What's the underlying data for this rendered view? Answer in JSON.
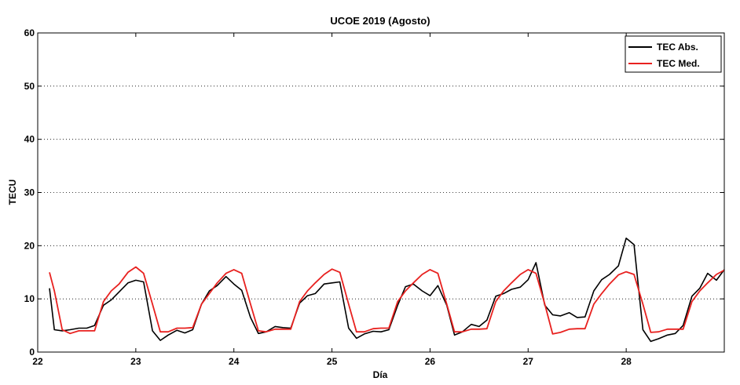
{
  "chart_data": {
    "type": "line",
    "title": "UCOE 2019 (Agosto)",
    "xlabel": "Día",
    "ylabel": "TECU",
    "xlim": [
      22,
      29
    ],
    "ylim": [
      0,
      60
    ],
    "xticks": [
      22,
      23,
      24,
      25,
      26,
      27,
      28
    ],
    "yticks": [
      0,
      10,
      20,
      30,
      40,
      50,
      60
    ],
    "grid": "y-dotted",
    "legend_position": "top-right",
    "series": [
      {
        "name": "TEC Abs.",
        "color": "#000000",
        "x": [
          22.12,
          22.17,
          22.25,
          22.33,
          22.42,
          22.5,
          22.58,
          22.67,
          22.75,
          22.83,
          22.92,
          23.0,
          23.08,
          23.17,
          23.25,
          23.33,
          23.42,
          23.5,
          23.58,
          23.67,
          23.75,
          23.83,
          23.92,
          24.0,
          24.08,
          24.17,
          24.25,
          24.33,
          24.42,
          24.5,
          24.58,
          24.67,
          24.75,
          24.83,
          24.92,
          25.0,
          25.08,
          25.17,
          25.25,
          25.33,
          25.42,
          25.5,
          25.58,
          25.67,
          25.75,
          25.83,
          25.92,
          26.0,
          26.08,
          26.17,
          26.25,
          26.33,
          26.42,
          26.5,
          26.58,
          26.67,
          26.75,
          26.83,
          26.92,
          27.0,
          27.08,
          27.17,
          27.25,
          27.33,
          27.42,
          27.5,
          27.58,
          27.67,
          27.75,
          27.83,
          27.92,
          28.0,
          28.08,
          28.17,
          28.25,
          28.33,
          28.42,
          28.5,
          28.58,
          28.67,
          28.75,
          28.83,
          28.92,
          29.0
        ],
        "y": [
          12,
          4.2,
          4.0,
          4.2,
          4.5,
          4.5,
          5,
          8.8,
          9.8,
          11.3,
          13,
          13.5,
          13.2,
          4,
          2.2,
          3.2,
          4.1,
          3.6,
          4.2,
          9.0,
          11.5,
          12.5,
          14.2,
          12.8,
          11.6,
          6.5,
          3.5,
          3.8,
          4.8,
          4.6,
          4.5,
          9.2,
          10.6,
          11.0,
          12.8,
          13.0,
          13.2,
          4.5,
          2.6,
          3.4,
          3.9,
          3.8,
          4.2,
          8.8,
          12.3,
          12.8,
          11.5,
          10.6,
          12.5,
          8.8,
          3.2,
          3.8,
          5.2,
          4.8,
          6.0,
          10.5,
          11.0,
          11.8,
          12.2,
          13.6,
          16.8,
          8.8,
          7.0,
          6.8,
          7.4,
          6.5,
          6.6,
          11.5,
          13.6,
          14.6,
          16.2,
          21.4,
          20.2,
          4.2,
          2.0,
          2.5,
          3.2,
          3.5,
          5.0,
          10.5,
          12.0,
          14.8,
          13.5,
          15.5
        ]
      },
      {
        "name": "TEC Med.",
        "color": "#e8211f",
        "x": [
          22.12,
          22.17,
          22.25,
          22.33,
          22.42,
          22.5,
          22.58,
          22.67,
          22.75,
          22.83,
          22.92,
          23.0,
          23.08,
          23.17,
          23.25,
          23.33,
          23.42,
          23.5,
          23.58,
          23.67,
          23.75,
          23.83,
          23.92,
          24.0,
          24.08,
          24.17,
          24.25,
          24.33,
          24.42,
          24.5,
          24.58,
          24.67,
          24.75,
          24.83,
          24.92,
          25.0,
          25.08,
          25.17,
          25.25,
          25.33,
          25.42,
          25.5,
          25.58,
          25.67,
          25.75,
          25.83,
          25.92,
          26.0,
          26.08,
          26.17,
          26.25,
          26.33,
          26.42,
          26.5,
          26.58,
          26.67,
          26.75,
          26.83,
          26.92,
          27.0,
          27.08,
          27.17,
          27.25,
          27.33,
          27.42,
          27.5,
          27.58,
          27.67,
          27.75,
          27.83,
          27.92,
          28.0,
          28.08,
          28.17,
          28.25,
          28.33,
          28.42,
          28.5,
          28.58,
          28.67,
          28.75,
          28.83,
          28.92,
          29.0
        ],
        "y": [
          15,
          11.5,
          4.2,
          3.5,
          4.0,
          4.0,
          4.0,
          9.5,
          11.5,
          12.8,
          15.0,
          16.0,
          14.8,
          9.0,
          3.8,
          3.8,
          4.5,
          4.5,
          4.6,
          9.0,
          11.0,
          13.0,
          14.8,
          15.5,
          14.8,
          9.0,
          4.0,
          3.8,
          4.3,
          4.3,
          4.3,
          9.5,
          11.5,
          13.0,
          14.6,
          15.6,
          15.0,
          9.0,
          3.8,
          3.8,
          4.4,
          4.5,
          4.5,
          9.5,
          11.5,
          13.0,
          14.6,
          15.5,
          14.8,
          9.0,
          3.8,
          3.8,
          4.3,
          4.3,
          4.4,
          9.5,
          11.5,
          13.0,
          14.6,
          15.5,
          14.8,
          9.0,
          3.4,
          3.7,
          4.3,
          4.4,
          4.4,
          9.0,
          11.0,
          12.8,
          14.5,
          15.1,
          14.6,
          9.0,
          3.7,
          3.8,
          4.3,
          4.3,
          4.3,
          9.5,
          11.5,
          13.0,
          14.6,
          15.4
        ]
      }
    ]
  }
}
